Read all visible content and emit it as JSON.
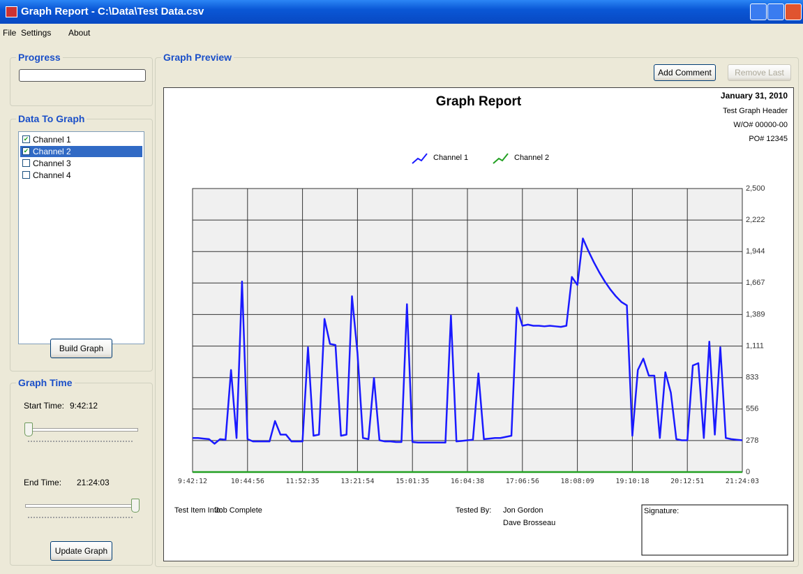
{
  "window": {
    "title": "Graph Report - C:\\Data\\Test Data.csv"
  },
  "menu": [
    "File",
    "Settings",
    "About"
  ],
  "progress": {
    "label": "Progress"
  },
  "data_to_graph": {
    "label": "Data To Graph",
    "channels": [
      {
        "name": "Channel 1",
        "checked": true
      },
      {
        "name": "Channel 2",
        "checked": true
      },
      {
        "name": "Channel 3",
        "checked": false
      },
      {
        "name": "Channel 4",
        "checked": false
      }
    ],
    "selected": 1,
    "button": "Build Graph"
  },
  "graph_time": {
    "label": "Graph Time",
    "start_label": "Start Time:",
    "start_value": "9:42:12",
    "end_label": "End Time:",
    "end_value": "21:24:03",
    "button": "Update Graph"
  },
  "graph_preview": {
    "label": "Graph Preview",
    "buttons": [
      "Add Comment",
      "Remove Last"
    ]
  },
  "report": {
    "date": "January 31, 2010",
    "header_lines": [
      "Test Graph Header",
      "W/O# 00000-00",
      "PO# 12345"
    ],
    "test_item_label": "Test Item Info:",
    "test_item_value": "Job Complete",
    "tested_by_label": "Tested By:",
    "testers": [
      "Jon Gordon",
      "Dave Brosseau"
    ],
    "signature_label": "Signature:"
  },
  "chart_data": {
    "type": "line",
    "title": "Graph Report",
    "xlim": [
      0,
      100
    ],
    "xticks": [
      {
        "value": 0,
        "label": "9:42:12"
      },
      {
        "value": 10,
        "label": "10:44:56"
      },
      {
        "value": 20,
        "label": "11:52:35"
      },
      {
        "value": 30,
        "label": "13:21:54"
      },
      {
        "value": 40,
        "label": "15:01:35"
      },
      {
        "value": 50,
        "label": "16:04:38"
      },
      {
        "value": 60,
        "label": "17:06:56"
      },
      {
        "value": 70,
        "label": "18:08:09"
      },
      {
        "value": 80,
        "label": "19:10:18"
      },
      {
        "value": 90,
        "label": "20:12:51"
      },
      {
        "value": 100,
        "label": "21:24:03"
      }
    ],
    "ylim": [
      0,
      2500
    ],
    "yticks": [
      0,
      278,
      556,
      833,
      {
        "value": 1111,
        "label": "1,111"
      },
      {
        "value": 1389,
        "label": "1,389"
      },
      {
        "value": 1667,
        "label": "1,667"
      },
      {
        "value": 1944,
        "label": "1,944"
      },
      {
        "value": 2222,
        "label": "2,222"
      },
      {
        "value": 2500,
        "label": "2,500"
      }
    ],
    "grid": true,
    "series": [
      {
        "name": "Channel 1",
        "color": "#1a1aff",
        "values": [
          300,
          300,
          295,
          290,
          250,
          290,
          285,
          900,
          300,
          1680,
          290,
          270,
          270,
          270,
          270,
          450,
          330,
          330,
          270,
          270,
          270,
          1100,
          320,
          330,
          1350,
          1130,
          1120,
          320,
          330,
          1550,
          1050,
          300,
          290,
          830,
          280,
          270,
          270,
          265,
          265,
          1480,
          265,
          260,
          260,
          260,
          260,
          260,
          260,
          1380,
          270,
          275,
          280,
          285,
          870,
          290,
          295,
          300,
          300,
          310,
          320,
          1450,
          1290,
          1300,
          1290,
          1290,
          1285,
          1290,
          1285,
          1280,
          1290,
          1720,
          1650,
          2060,
          1950,
          1850,
          1760,
          1680,
          1610,
          1550,
          1500,
          1470,
          320,
          900,
          1000,
          850,
          850,
          300,
          880,
          700,
          290,
          280,
          280,
          940,
          960,
          300,
          1150,
          330,
          1100,
          300,
          290,
          285,
          280
        ]
      },
      {
        "name": "Channel 2",
        "color": "#22a022",
        "values": [
          0,
          0,
          0,
          0,
          0,
          0,
          0,
          0,
          0,
          0,
          0,
          0,
          0,
          0,
          0,
          0,
          0,
          0,
          0,
          0,
          0,
          0,
          0,
          0,
          0,
          0,
          0,
          0,
          0,
          0,
          0,
          0,
          0,
          0,
          0,
          0,
          0,
          0,
          0,
          0,
          0,
          0,
          0,
          0,
          0,
          0,
          0,
          0,
          0,
          0,
          0,
          0,
          0,
          0,
          0,
          0,
          0,
          0,
          0,
          0,
          0,
          0,
          0,
          0,
          0,
          0,
          0,
          0,
          0,
          0,
          0,
          0,
          0,
          0,
          0,
          0,
          0,
          0,
          0,
          0,
          0,
          0,
          0,
          0,
          0,
          0,
          0,
          0,
          0,
          0,
          0,
          0,
          0,
          0,
          0,
          0,
          0,
          0,
          0,
          0,
          0
        ]
      }
    ]
  }
}
